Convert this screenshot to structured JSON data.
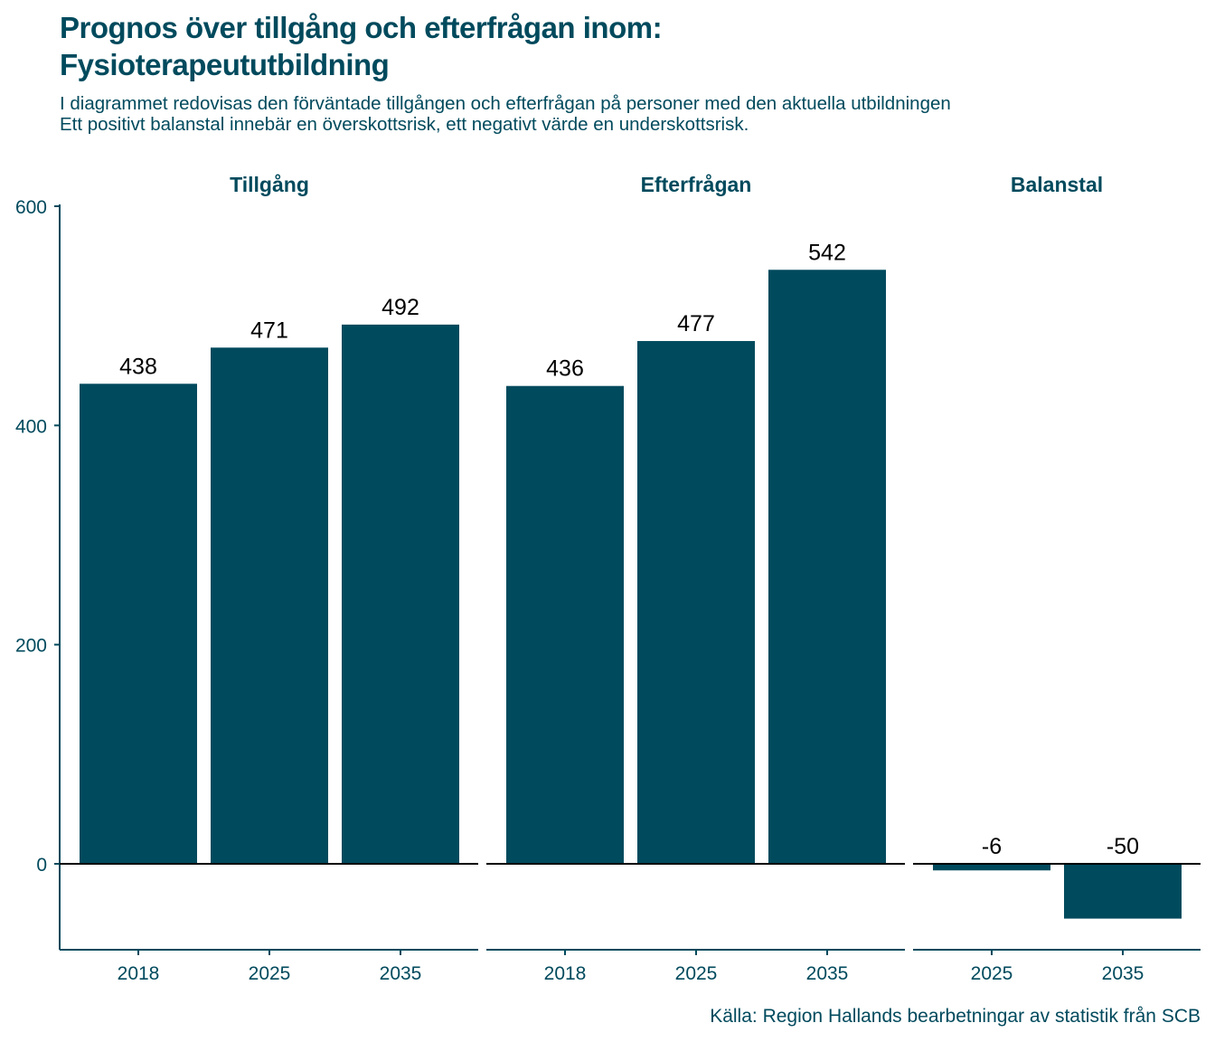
{
  "title_line1": "Prognos över tillgång och efterfrågan inom:",
  "title_line2": "Fysioterapeututbildning",
  "subtitle_line1": "I diagrammet redovisas den förväntade tillgången och efterfrågan på personer med den aktuella utbildningen",
  "subtitle_line2": "Ett positivt balanstal innebär en överskottsrisk, ett negativt värde en underskottsrisk.",
  "caption": "Källa: Region Hallands bearbetningar av statistik från SCB",
  "colors": {
    "bar": "#004a5d",
    "text": "#004a5d",
    "label": "#000000"
  },
  "chart_data": {
    "type": "bar",
    "ylim": [
      -80,
      600
    ],
    "y_ticks": [
      0,
      200,
      400,
      600
    ],
    "grid": false,
    "facets": [
      {
        "title": "Tillgång",
        "categories": [
          "2018",
          "2025",
          "2035"
        ],
        "values": [
          438,
          471,
          492
        ]
      },
      {
        "title": "Efterfrågan",
        "categories": [
          "2018",
          "2025",
          "2035"
        ],
        "values": [
          436,
          477,
          542
        ]
      },
      {
        "title": "Balanstal",
        "categories": [
          "2025",
          "2035"
        ],
        "values": [
          -6,
          -50
        ]
      }
    ]
  }
}
